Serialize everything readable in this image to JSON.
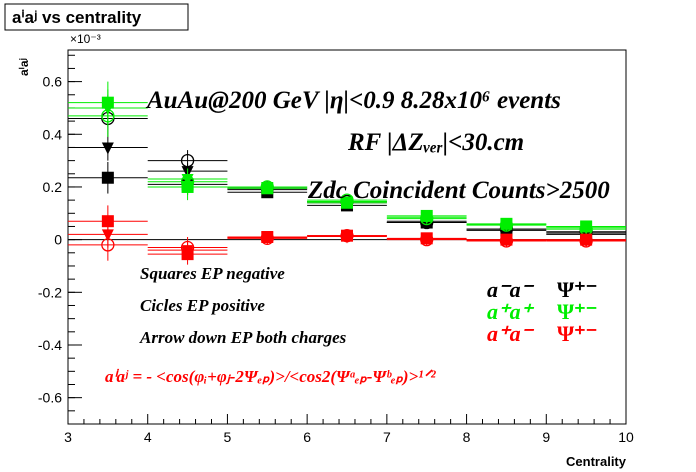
{
  "chart_data": {
    "type": "scatter",
    "title": "aⁱaʲ vs centrality",
    "xlabel": "Centrality",
    "ylabel": "aⁱaʲ",
    "y_exponent": "×10⁻³",
    "xlim": [
      3,
      10
    ],
    "ylim": [
      -0.7,
      0.72
    ],
    "x_ticks": [
      3,
      4,
      5,
      6,
      7,
      8,
      9,
      10
    ],
    "y_ticks": [
      -0.6,
      -0.4,
      -0.2,
      0,
      0.2,
      0.4,
      0.6
    ],
    "grid": false,
    "annotations": {
      "line1": "AuAu@200 GeV |η|<0.9 8.28x10⁶ events",
      "line2": "RF |ΔZᵥₑᵣ|<30.cm",
      "line3": "Zdc Coincident Counts>2500",
      "marker_squares": "Squares EP negative",
      "marker_circles": "Cicles EP positive",
      "marker_arrows": "Arrow down EP both charges",
      "formula": "aⁱaʲ = - <cos(φᵢ+φⱼ-2Ψₑₚ)>/<cos2(Ψᵃₑₚ-Ψᵇₑₚ)>¹ᐟ²"
    },
    "legend": {
      "placement": "right",
      "entries": [
        {
          "label": "a⁻a⁻",
          "psi": "Ψ⁺⁻",
          "color": "#000000"
        },
        {
          "label": "a⁺a⁺",
          "psi": "Ψ⁺⁻",
          "color": "#00ee00"
        },
        {
          "label": "a⁺a⁻",
          "psi": "Ψ⁺⁻",
          "color": "#ff0000"
        }
      ]
    },
    "series": [
      {
        "color": "#000000",
        "marker": "square",
        "x": [
          3.5,
          4.5,
          5.5,
          6.5,
          7.5,
          8.5,
          9.5
        ],
        "y": [
          0.235,
          0.21,
          0.18,
          0.13,
          0.065,
          0.035,
          0.02
        ],
        "err": [
          0.06,
          0.04,
          0.015,
          0.01,
          0.008,
          0.006,
          0.006
        ]
      },
      {
        "color": "#000000",
        "marker": "circle",
        "x": [
          3.5,
          4.5,
          5.5,
          6.5,
          7.5,
          8.5,
          9.5
        ],
        "y": [
          0.46,
          0.3,
          0.195,
          0.145,
          0.065,
          0.04,
          0.03
        ],
        "err": [
          0.06,
          0.04,
          0.015,
          0.01,
          0.008,
          0.006,
          0.006
        ]
      },
      {
        "color": "#000000",
        "marker": "triangle-down",
        "x": [
          3.5,
          4.5,
          5.5,
          6.5,
          7.5,
          8.5,
          9.5
        ],
        "y": [
          0.35,
          0.26,
          0.19,
          0.14,
          0.07,
          0.04,
          0.025
        ],
        "err": [
          0.05,
          0.03,
          0.012,
          0.008,
          0.006,
          0.005,
          0.005
        ]
      },
      {
        "color": "#00ee00",
        "marker": "square",
        "x": [
          3.5,
          4.5,
          5.5,
          6.5,
          7.5,
          8.5,
          9.5
        ],
        "y": [
          0.52,
          0.2,
          0.195,
          0.14,
          0.09,
          0.06,
          0.05
        ],
        "err": [
          0.08,
          0.05,
          0.015,
          0.01,
          0.008,
          0.006,
          0.006
        ]
      },
      {
        "color": "#00ee00",
        "marker": "circle",
        "x": [
          3.5,
          4.5,
          5.5,
          6.5,
          7.5,
          8.5,
          9.5
        ],
        "y": [
          0.47,
          0.22,
          0.2,
          0.15,
          0.08,
          0.055,
          0.04
        ],
        "err": [
          0.08,
          0.05,
          0.015,
          0.01,
          0.008,
          0.006,
          0.006
        ]
      },
      {
        "color": "#00ee00",
        "marker": "triangle-down",
        "x": [
          3.5,
          4.5,
          5.5,
          6.5,
          7.5,
          8.5,
          9.5
        ],
        "y": [
          0.5,
          0.23,
          0.2,
          0.145,
          0.085,
          0.058,
          0.045
        ],
        "err": [
          0.07,
          0.04,
          0.012,
          0.008,
          0.006,
          0.005,
          0.005
        ]
      },
      {
        "color": "#ff0000",
        "marker": "square",
        "x": [
          3.5,
          4.5,
          5.5,
          6.5,
          7.5,
          8.5,
          9.5
        ],
        "y": [
          0.07,
          -0.055,
          0.01,
          0.015,
          0.005,
          0.0,
          0.0
        ],
        "err": [
          0.06,
          0.04,
          0.015,
          0.01,
          0.008,
          0.006,
          0.006
        ]
      },
      {
        "color": "#ff0000",
        "marker": "circle",
        "x": [
          3.5,
          4.5,
          5.5,
          6.5,
          7.5,
          8.5,
          9.5
        ],
        "y": [
          -0.02,
          -0.03,
          0.005,
          0.015,
          0.0,
          -0.005,
          -0.005
        ],
        "err": [
          0.06,
          0.04,
          0.015,
          0.01,
          0.008,
          0.006,
          0.006
        ]
      },
      {
        "color": "#ff0000",
        "marker": "triangle-down",
        "x": [
          3.5,
          4.5,
          5.5,
          6.5,
          7.5,
          8.5,
          9.5
        ],
        "y": [
          0.02,
          -0.04,
          0.008,
          0.012,
          0.003,
          -0.002,
          -0.003
        ],
        "err": [
          0.05,
          0.03,
          0.012,
          0.008,
          0.006,
          0.005,
          0.005
        ]
      }
    ]
  }
}
